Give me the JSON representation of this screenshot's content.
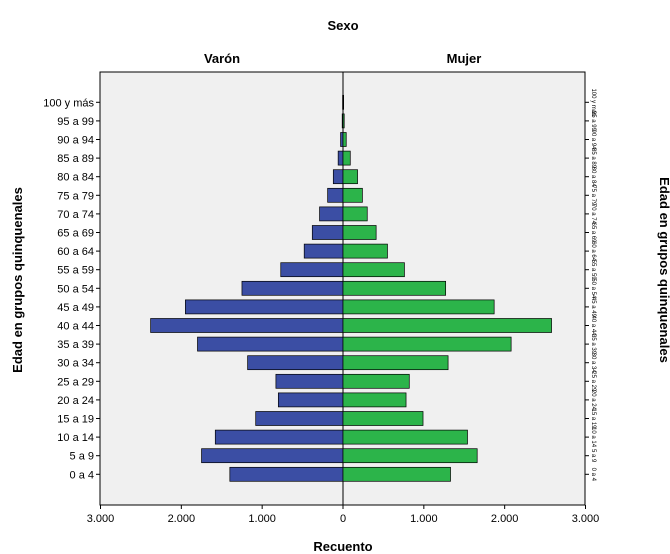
{
  "chart_data": {
    "type": "bar",
    "orientation": "horizontal",
    "panel_title": "Sexo",
    "xlabel": "Recuento",
    "ylabel": "Edad en grupos quinquenales",
    "xlim": [
      -3000,
      3000
    ],
    "x_ticks": [
      -3000,
      -2000,
      -1000,
      0,
      1000,
      2000,
      3000
    ],
    "x_tick_labels": [
      "3.000",
      "2.000",
      "1.000",
      "0",
      "1.000",
      "2.000",
      "3.000"
    ],
    "grid": false,
    "legend": "none",
    "categories": [
      "0 a 4",
      "5 a 9",
      "10 a 14",
      "15 a 19",
      "20 a 24",
      "25 a 29",
      "30 a 34",
      "35 a 39",
      "40 a 44",
      "45 a 49",
      "50 a 54",
      "55 a 59",
      "60 a 64",
      "65 a 69",
      "70 a 74",
      "75 a 79",
      "80 a 84",
      "85 a 89",
      "90 a 94",
      "95 a 99",
      "100 y más"
    ],
    "series": [
      {
        "name": "Varón",
        "color": "#3b4ea4",
        "values": [
          1400,
          1750,
          1580,
          1080,
          800,
          830,
          1180,
          1800,
          2380,
          1950,
          1250,
          770,
          480,
          380,
          290,
          190,
          120,
          60,
          30,
          10,
          5
        ]
      },
      {
        "name": "Mujer",
        "color": "#2cb44a",
        "values": [
          1330,
          1660,
          1540,
          990,
          780,
          820,
          1300,
          2080,
          2580,
          1870,
          1270,
          760,
          550,
          410,
          300,
          240,
          180,
          90,
          40,
          15,
          8
        ]
      }
    ]
  }
}
